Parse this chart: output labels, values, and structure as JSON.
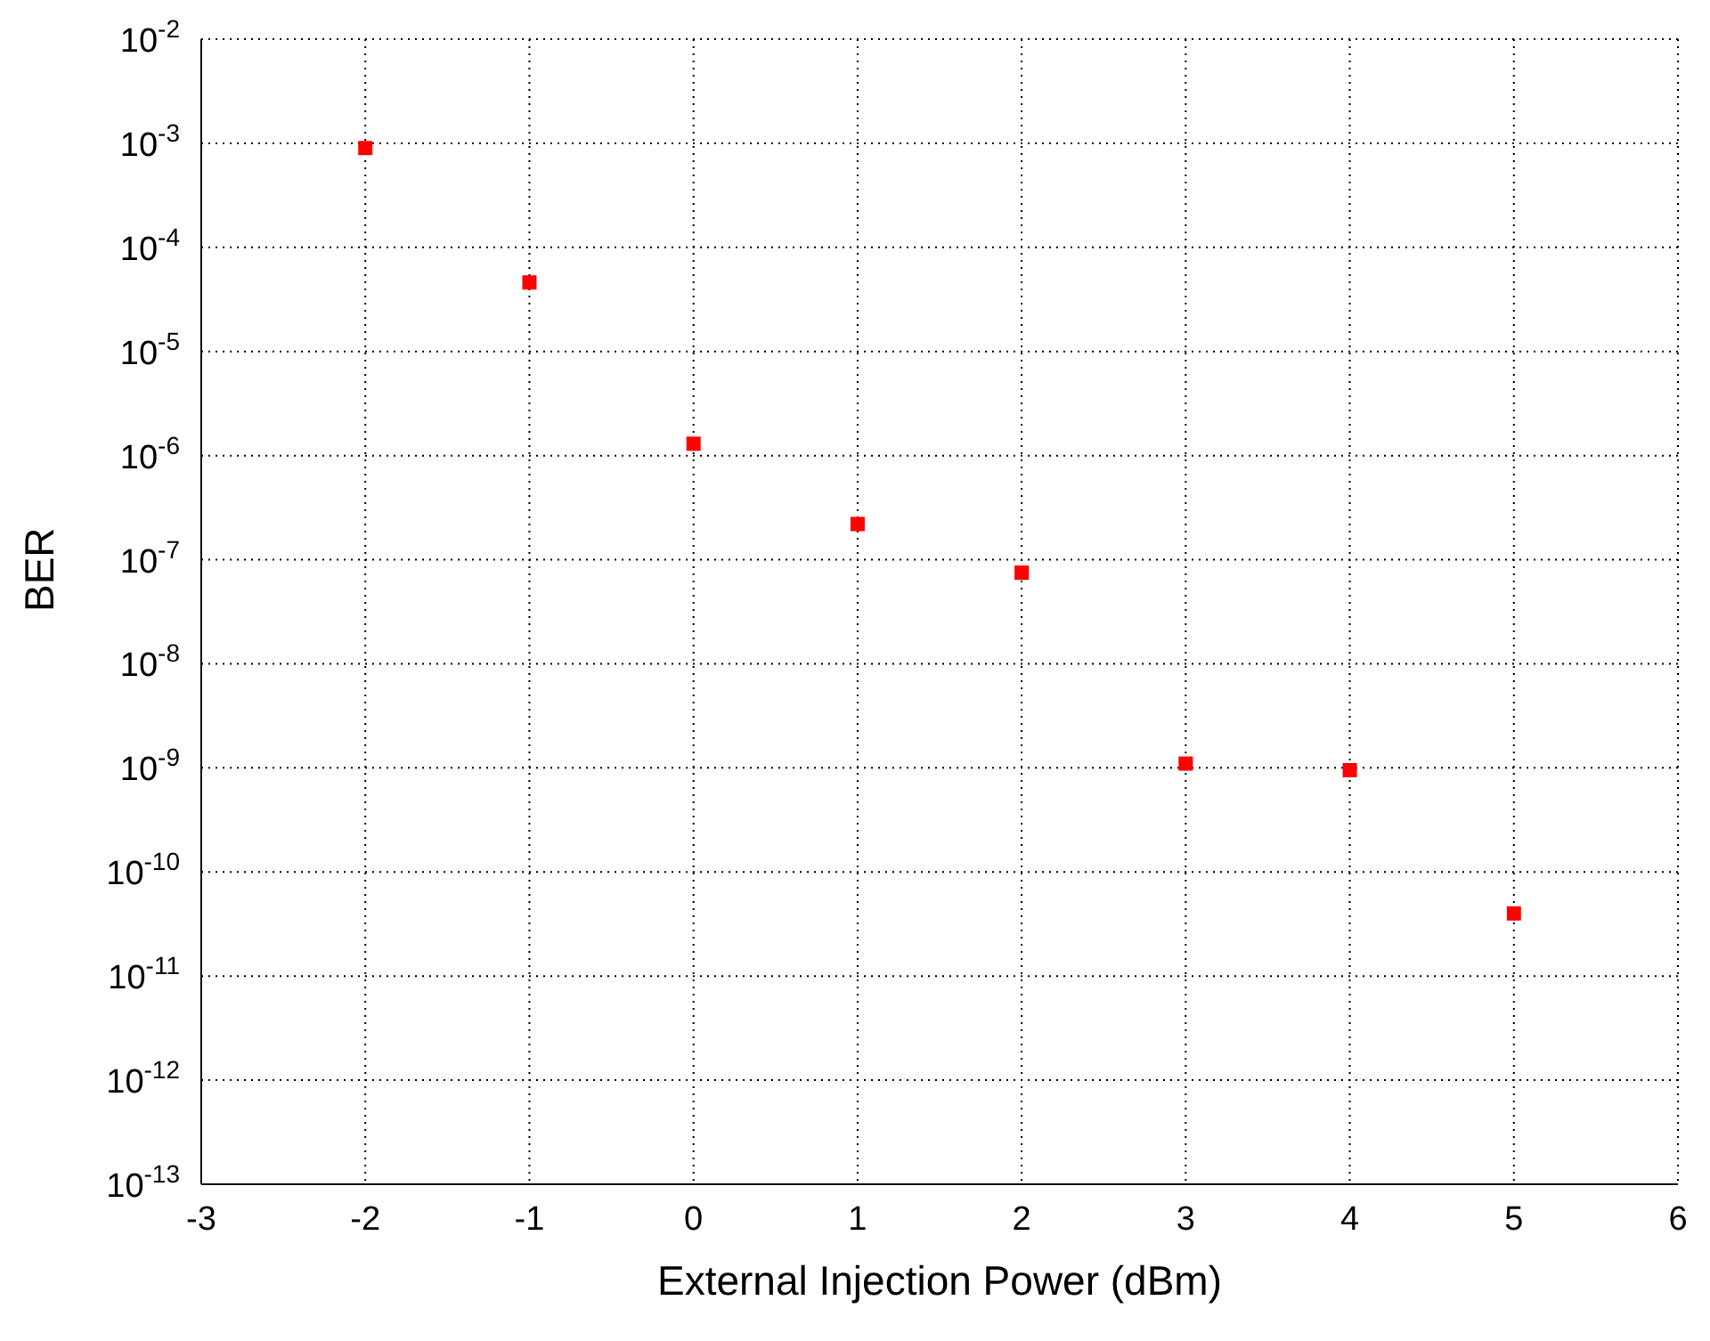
{
  "chart_data": {
    "type": "scatter",
    "xlabel": "External Injection Power (dBm)",
    "ylabel": "BER",
    "log": "y",
    "x": [
      -2,
      -1,
      0,
      1,
      2,
      3,
      4,
      5
    ],
    "series": [
      {
        "color": "#ff0000",
        "values": [
          0.0009,
          4.6e-05,
          1.3e-06,
          2.2e-07,
          7.5e-08,
          1.1e-09,
          9.5e-10,
          4e-11
        ]
      }
    ],
    "xlim": [
      -3,
      6
    ],
    "xticks": [
      -3,
      -2,
      -1,
      0,
      1,
      2,
      3,
      4,
      5,
      6
    ],
    "ylim": [
      1e-13,
      0.01
    ],
    "yticks": [
      {
        "value": 1e-13,
        "label": "10$^{-13}$"
      },
      {
        "value": 1e-12,
        "label": "10$^{-12}$"
      },
      {
        "value": 1e-11,
        "label": "10$^{-11}$"
      },
      {
        "value": 1e-10,
        "label": "10$^{-10}$"
      },
      {
        "value": 1e-09,
        "label": "10$^{-9}$"
      },
      {
        "value": 1e-08,
        "label": "10$^{-8}$"
      },
      {
        "value": 1e-07,
        "label": "10$^{-7}$"
      },
      {
        "value": 1e-06,
        "label": "10$^{-6}$"
      },
      {
        "value": 1e-05,
        "label": "10$^{-5}$"
      },
      {
        "value": 0.0001,
        "label": "10$^{-4}$"
      },
      {
        "value": 0.001,
        "label": "10$^{-3}$"
      },
      {
        "value": 0.01,
        "label": "10$^{-2}$"
      }
    ],
    "grid": true,
    "marker": "square",
    "legend": false
  }
}
